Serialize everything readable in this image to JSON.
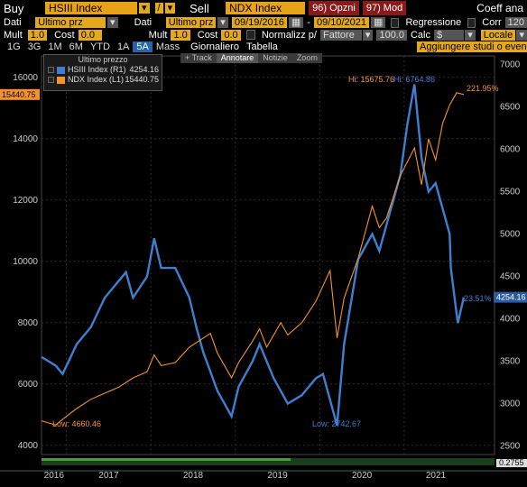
{
  "toolbar": {
    "buy_label": "Buy",
    "ticker1": "HSIII Index",
    "slash": "/",
    "sell_label": "Sell",
    "ticker2": "NDX Index",
    "options_menu": "96) Opzni",
    "mod_menu": "97) Mod",
    "coeff_label": "Coeff ana",
    "dropdown_arrow": "▾"
  },
  "row2": {
    "dati1_label": "Dati",
    "dati1_value": "Ultimo prz",
    "dati2_label": "Dati",
    "dati2_value": "Ultimo prz",
    "date_start": "09/19/2016",
    "date_end": "09/10/2021",
    "regressione_label": "Regressione",
    "corr_label": "Corr",
    "corr_value": "120"
  },
  "row3": {
    "mult1_label": "Mult",
    "mult1_value": "1.0",
    "cost1_label": "Cost",
    "cost1_value": "0.0",
    "mult2_label": "Mult",
    "mult2_value": "1.0",
    "cost2_label": "Cost",
    "cost2_value": "0.0",
    "normalizz_label": "Normalizz p/",
    "fattore_value": "Fattore",
    "norm_value": "100.0",
    "calc_label": "Calc",
    "calc_value": "$",
    "locale_value": "Locale"
  },
  "row4": {
    "periods": [
      "1G",
      "3G",
      "1M",
      "6M",
      "YTD",
      "1A",
      "5A",
      "Mass"
    ],
    "selected_period": "5A",
    "giornaliero": "Giornaliero",
    "tabella": "Tabella",
    "add_studies": "Aggiungere studi o even"
  },
  "annotation_toolbar": [
    "+ Track",
    "Annotare",
    "Notizie",
    "Zoom"
  ],
  "legend": {
    "header": "Ultimo prezzo",
    "items": [
      {
        "name": "HSIII Index  (R1)",
        "value": "4254.16",
        "color": "#3f7fd0"
      },
      {
        "name": "NDX Index  (L1)",
        "value": "15440.75",
        "color": "#f5932a"
      }
    ]
  },
  "chart_data": {
    "type": "line",
    "x_labels": [
      "2016",
      "2017",
      "2018",
      "2019",
      "2020",
      "2021"
    ],
    "left_axis": {
      "ticks": [
        4000,
        6000,
        8000,
        10000,
        12000,
        14000,
        16000
      ],
      "range": [
        3700,
        16700
      ]
    },
    "right_axis": {
      "ticks": [
        2500,
        3000,
        3500,
        4000,
        4500,
        5000,
        5500,
        6000,
        6500,
        7000
      ],
      "range": [
        2400,
        7100
      ]
    },
    "series": [
      {
        "name": "HSIII Index",
        "axis": "right",
        "color": "#3f7fd0",
        "last_label": "4254.16",
        "pct_label": "23.51%",
        "hi_label": "Hi: 6764.86",
        "low_label": "Low: 2742.67",
        "points": [
          [
            "2016-09",
            3550
          ],
          [
            "2016-11",
            3450
          ],
          [
            "2016-12",
            3350
          ],
          [
            "2017-02",
            3700
          ],
          [
            "2017-04",
            3900
          ],
          [
            "2017-06",
            4250
          ],
          [
            "2017-08",
            4450
          ],
          [
            "2017-09",
            4550
          ],
          [
            "2017-10",
            4250
          ],
          [
            "2017-12",
            4500
          ],
          [
            "2018-01",
            4950
          ],
          [
            "2018-02",
            4600
          ],
          [
            "2018-04",
            4600
          ],
          [
            "2018-06",
            4250
          ],
          [
            "2018-07",
            3900
          ],
          [
            "2018-08",
            3600
          ],
          [
            "2018-10",
            3150
          ],
          [
            "2018-12",
            2850
          ],
          [
            "2019-01",
            3200
          ],
          [
            "2019-03",
            3500
          ],
          [
            "2019-04",
            3700
          ],
          [
            "2019-06",
            3300
          ],
          [
            "2019-08",
            3000
          ],
          [
            "2019-10",
            3100
          ],
          [
            "2019-12",
            3300
          ],
          [
            "2020-01",
            3350
          ],
          [
            "2020-03",
            2742.67
          ],
          [
            "2020-04",
            3700
          ],
          [
            "2020-06",
            4700
          ],
          [
            "2020-08",
            5000
          ],
          [
            "2020-09",
            4800
          ],
          [
            "2020-11",
            5400
          ],
          [
            "2020-12",
            5700
          ],
          [
            "2021-01",
            6300
          ],
          [
            "2021-02",
            6764.86
          ],
          [
            "2021-03",
            5900
          ],
          [
            "2021-04",
            5500
          ],
          [
            "2021-05",
            5600
          ],
          [
            "2021-06",
            5300
          ],
          [
            "2021-07",
            5000
          ],
          [
            "2021-07-20",
            4600
          ],
          [
            "2021-08",
            4050
          ],
          [
            "2021-08-20",
            3950
          ],
          [
            "2021-09",
            4254.16
          ]
        ]
      },
      {
        "name": "NDX Index",
        "axis": "left",
        "color": "#f5932a",
        "last_label": "15440.75",
        "pct_label": "221.95%",
        "hi_label": "Hi: 15675.76",
        "low_label": "Low: 4660.46",
        "points": [
          [
            "2016-09",
            4800
          ],
          [
            "2016-11",
            4660.46
          ],
          [
            "2016-12",
            4850
          ],
          [
            "2017-02",
            5200
          ],
          [
            "2017-04",
            5500
          ],
          [
            "2017-06",
            5700
          ],
          [
            "2017-08",
            5900
          ],
          [
            "2017-10",
            6200
          ],
          [
            "2017-12",
            6400
          ],
          [
            "2018-01",
            6950
          ],
          [
            "2018-02",
            6600
          ],
          [
            "2018-04",
            6700
          ],
          [
            "2018-06",
            7200
          ],
          [
            "2018-08",
            7500
          ],
          [
            "2018-09",
            7650
          ],
          [
            "2018-10",
            7000
          ],
          [
            "2018-12",
            6200
          ],
          [
            "2019-01",
            6700
          ],
          [
            "2019-03",
            7400
          ],
          [
            "2019-04",
            7800
          ],
          [
            "2019-05",
            7200
          ],
          [
            "2019-07",
            8000
          ],
          [
            "2019-08",
            7600
          ],
          [
            "2019-10",
            8000
          ],
          [
            "2019-12",
            8700
          ],
          [
            "2020-02",
            9700
          ],
          [
            "2020-03",
            7500
          ],
          [
            "2020-04",
            8800
          ],
          [
            "2020-06",
            10100
          ],
          [
            "2020-08",
            11800
          ],
          [
            "2020-09",
            11100
          ],
          [
            "2020-10",
            11400
          ],
          [
            "2020-12",
            12800
          ],
          [
            "2021-02",
            13700
          ],
          [
            "2021-03",
            12500
          ],
          [
            "2021-04",
            14000
          ],
          [
            "2021-05",
            13300
          ],
          [
            "2021-06",
            14500
          ],
          [
            "2021-07",
            15100
          ],
          [
            "2021-08",
            15500
          ],
          [
            "2021-09",
            15440.75
          ]
        ]
      }
    ],
    "left_flag": "15440.75",
    "right_flag": "4254.16",
    "bottom_flag": "0.2755"
  }
}
